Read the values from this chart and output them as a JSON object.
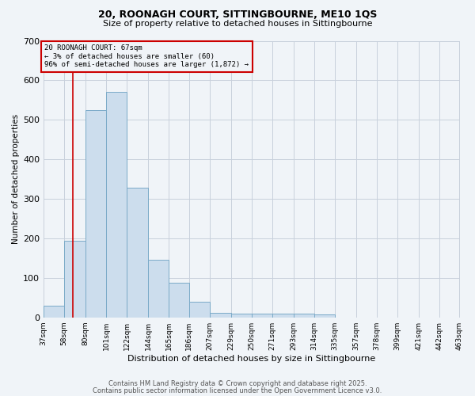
{
  "title1": "20, ROONAGH COURT, SITTINGBOURNE, ME10 1QS",
  "title2": "Size of property relative to detached houses in Sittingbourne",
  "xlabel": "Distribution of detached houses by size in Sittingbourne",
  "ylabel": "Number of detached properties",
  "bin_edges": [
    37,
    58,
    80,
    101,
    122,
    144,
    165,
    186,
    207,
    229,
    250,
    271,
    293,
    314,
    335,
    357,
    378,
    399,
    421,
    442,
    463
  ],
  "bar_heights": [
    30,
    193,
    525,
    570,
    328,
    145,
    87,
    40,
    12,
    10,
    10,
    10,
    10,
    7,
    0,
    0,
    0,
    0,
    0,
    0
  ],
  "bar_color": "#ccdded",
  "bar_edge_color": "#7aaac8",
  "grid_color": "#c8d0dc",
  "background_color": "#f0f4f8",
  "vline_x": 67,
  "vline_color": "#cc0000",
  "annotation_text": "20 ROONAGH COURT: 67sqm\n← 3% of detached houses are smaller (60)\n96% of semi-detached houses are larger (1,872) →",
  "annotation_box_color": "#cc0000",
  "ylim": [
    0,
    700
  ],
  "yticks": [
    0,
    100,
    200,
    300,
    400,
    500,
    600,
    700
  ],
  "footer1": "Contains HM Land Registry data © Crown copyright and database right 2025.",
  "footer2": "Contains public sector information licensed under the Open Government Licence v3.0."
}
